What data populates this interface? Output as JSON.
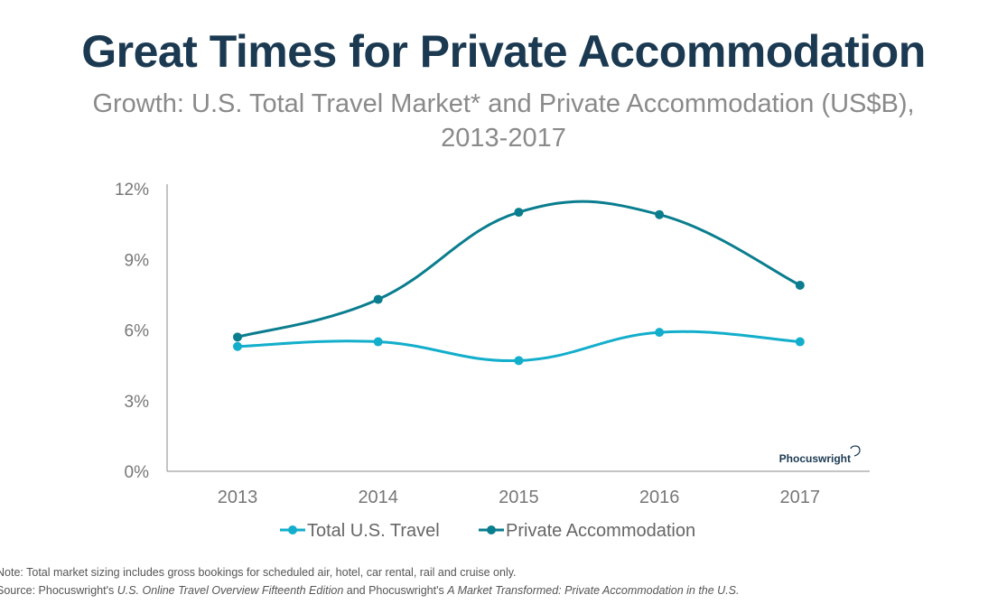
{
  "title": "Great Times for Private Accommodation",
  "subtitle_line1": "Growth: U.S. Total Travel Market* and Private Accommodation (US$B),",
  "subtitle_line2": "2013-2017",
  "watermark": "Phocuswright",
  "notes": {
    "note": "Note: Total market sizing includes gross bookings for scheduled air, hotel, car rental, rail and cruise only.",
    "source_prefix": "Source: Phocuswright's ",
    "source_title1": "U.S. Online Travel Overview Fifteenth Edition",
    "source_mid": " and Phocuswright's ",
    "source_title2": "A Market Transformed: Private Accommodation in the U.S."
  },
  "chart_data": {
    "type": "line",
    "categories": [
      "2013",
      "2014",
      "2015",
      "2016",
      "2017"
    ],
    "ylim": [
      0,
      12
    ],
    "yticks": [
      "0%",
      "3%",
      "6%",
      "9%",
      "12%"
    ],
    "ytick_values": [
      0,
      3,
      6,
      9,
      12
    ],
    "grid": false,
    "smooth": true,
    "legend_position": "bottom",
    "series": [
      {
        "name": "Total U.S. Travel",
        "color": "#13aecb",
        "values": [
          5.3,
          5.5,
          4.7,
          5.9,
          5.5
        ]
      },
      {
        "name": "Private Accommodation",
        "color": "#0a7d8e",
        "values": [
          5.7,
          7.3,
          11.0,
          10.9,
          7.9
        ]
      }
    ]
  }
}
